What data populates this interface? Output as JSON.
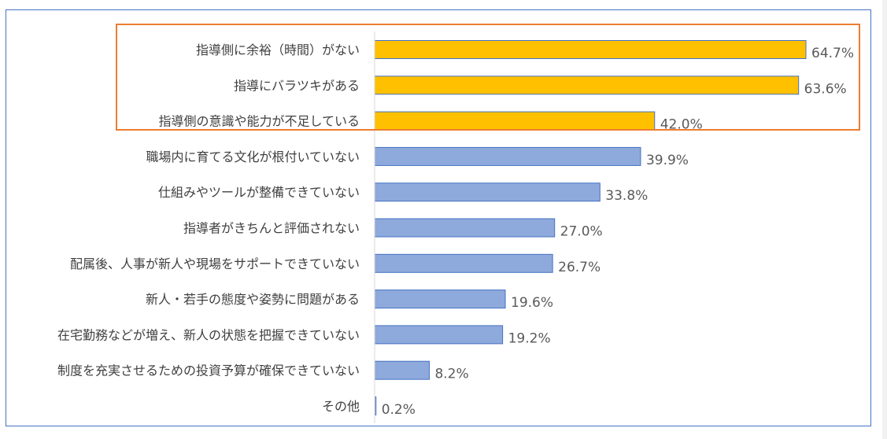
{
  "colors": {
    "highlight_bar": "#ffc000",
    "normal_bar": "#8ea9db",
    "bar_border": "#4472c4",
    "highlight_box": "#ed7d31",
    "frame": "#4472c4"
  },
  "chart_data": {
    "type": "bar",
    "orientation": "horizontal",
    "categories": [
      "指導側に余裕（時間）がない",
      "指導にバラツキがある",
      "指導側の意識や能力が不足している",
      "職場内に育てる文化が根付いていない",
      "仕組みやツールが整備できていない",
      "指導者がきちんと評価されない",
      "配属後、人事が新人や現場をサポートできていない",
      "新人・若手の態度や姿勢に問題がある",
      "在宅勤務などが増え、新人の状態を把握できていない",
      "制度を充実させるための投資予算が確保できていない",
      "その他"
    ],
    "values": [
      64.7,
      63.6,
      42.0,
      39.9,
      33.8,
      27.0,
      26.7,
      19.6,
      19.2,
      8.2,
      0.2
    ],
    "value_labels": [
      "64.7%",
      "63.6%",
      "42.0%",
      "39.9%",
      "33.8%",
      "27.0%",
      "26.7%",
      "19.6%",
      "19.2%",
      "8.2%",
      "0.2%"
    ],
    "highlighted": [
      true,
      true,
      true,
      false,
      false,
      false,
      false,
      false,
      false,
      false,
      false
    ],
    "xlim": [
      0,
      70
    ],
    "grid": false,
    "legend": "none"
  }
}
